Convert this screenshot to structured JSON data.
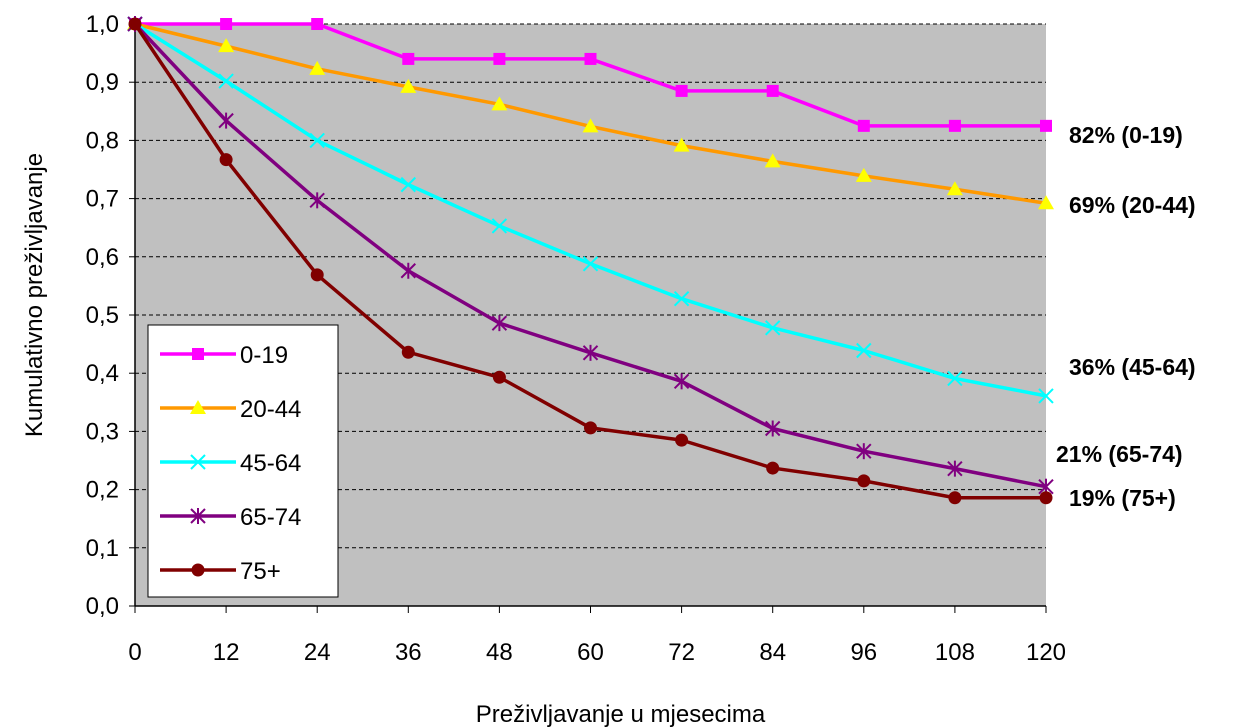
{
  "chart_data": {
    "type": "line",
    "xlabel": "Preživljavanje u mjesecima",
    "ylabel": "Kumulativno preživljavanje",
    "x": [
      0,
      12,
      24,
      36,
      48,
      60,
      72,
      84,
      96,
      108,
      120
    ],
    "x_tick_labels": [
      "0",
      "12",
      "24",
      "36",
      "48",
      "60",
      "72",
      "84",
      "96",
      "108",
      "120"
    ],
    "y_tick_labels": [
      "0,0",
      "0,1",
      "0,2",
      "0,3",
      "0,4",
      "0,5",
      "0,6",
      "0,7",
      "0,8",
      "0,9",
      "1,0"
    ],
    "xlim": [
      0,
      120
    ],
    "ylim": [
      0,
      1
    ],
    "grid": "horizontal dashed",
    "plot_background": "#c0c0c0",
    "legend_position": "bottom-left",
    "series": [
      {
        "name": "0-19",
        "color": "#ff00ff",
        "marker": "square",
        "end_label": "82% (0-19)",
        "values": [
          1.0,
          1.0,
          1.0,
          0.94,
          0.94,
          0.94,
          0.885,
          0.885,
          0.825,
          0.825,
          0.825
        ]
      },
      {
        "name": "20-44",
        "color": "#ff9900",
        "marker": "triangle",
        "marker_fill": "#ffff00",
        "end_label": "69% (20-44)",
        "values": [
          1.0,
          0.962,
          0.923,
          0.892,
          0.862,
          0.824,
          0.791,
          0.764,
          0.739,
          0.716,
          0.692
        ]
      },
      {
        "name": "45-64",
        "color": "#00ffff",
        "marker": "x",
        "end_label": "36% (45-64)",
        "values": [
          1.0,
          0.902,
          0.8,
          0.724,
          0.653,
          0.588,
          0.528,
          0.478,
          0.439,
          0.391,
          0.361
        ]
      },
      {
        "name": "65-74",
        "color": "#800080",
        "marker": "star",
        "end_label": "21% (65-74)",
        "values": [
          1.0,
          0.834,
          0.697,
          0.576,
          0.486,
          0.435,
          0.386,
          0.305,
          0.266,
          0.236,
          0.205
        ]
      },
      {
        "name": "75+",
        "color": "#800000",
        "marker": "circle",
        "end_label": "19% (75+)",
        "values": [
          1.0,
          0.767,
          0.569,
          0.436,
          0.393,
          0.306,
          0.285,
          0.237,
          0.215,
          0.186,
          0.186
        ]
      }
    ]
  }
}
